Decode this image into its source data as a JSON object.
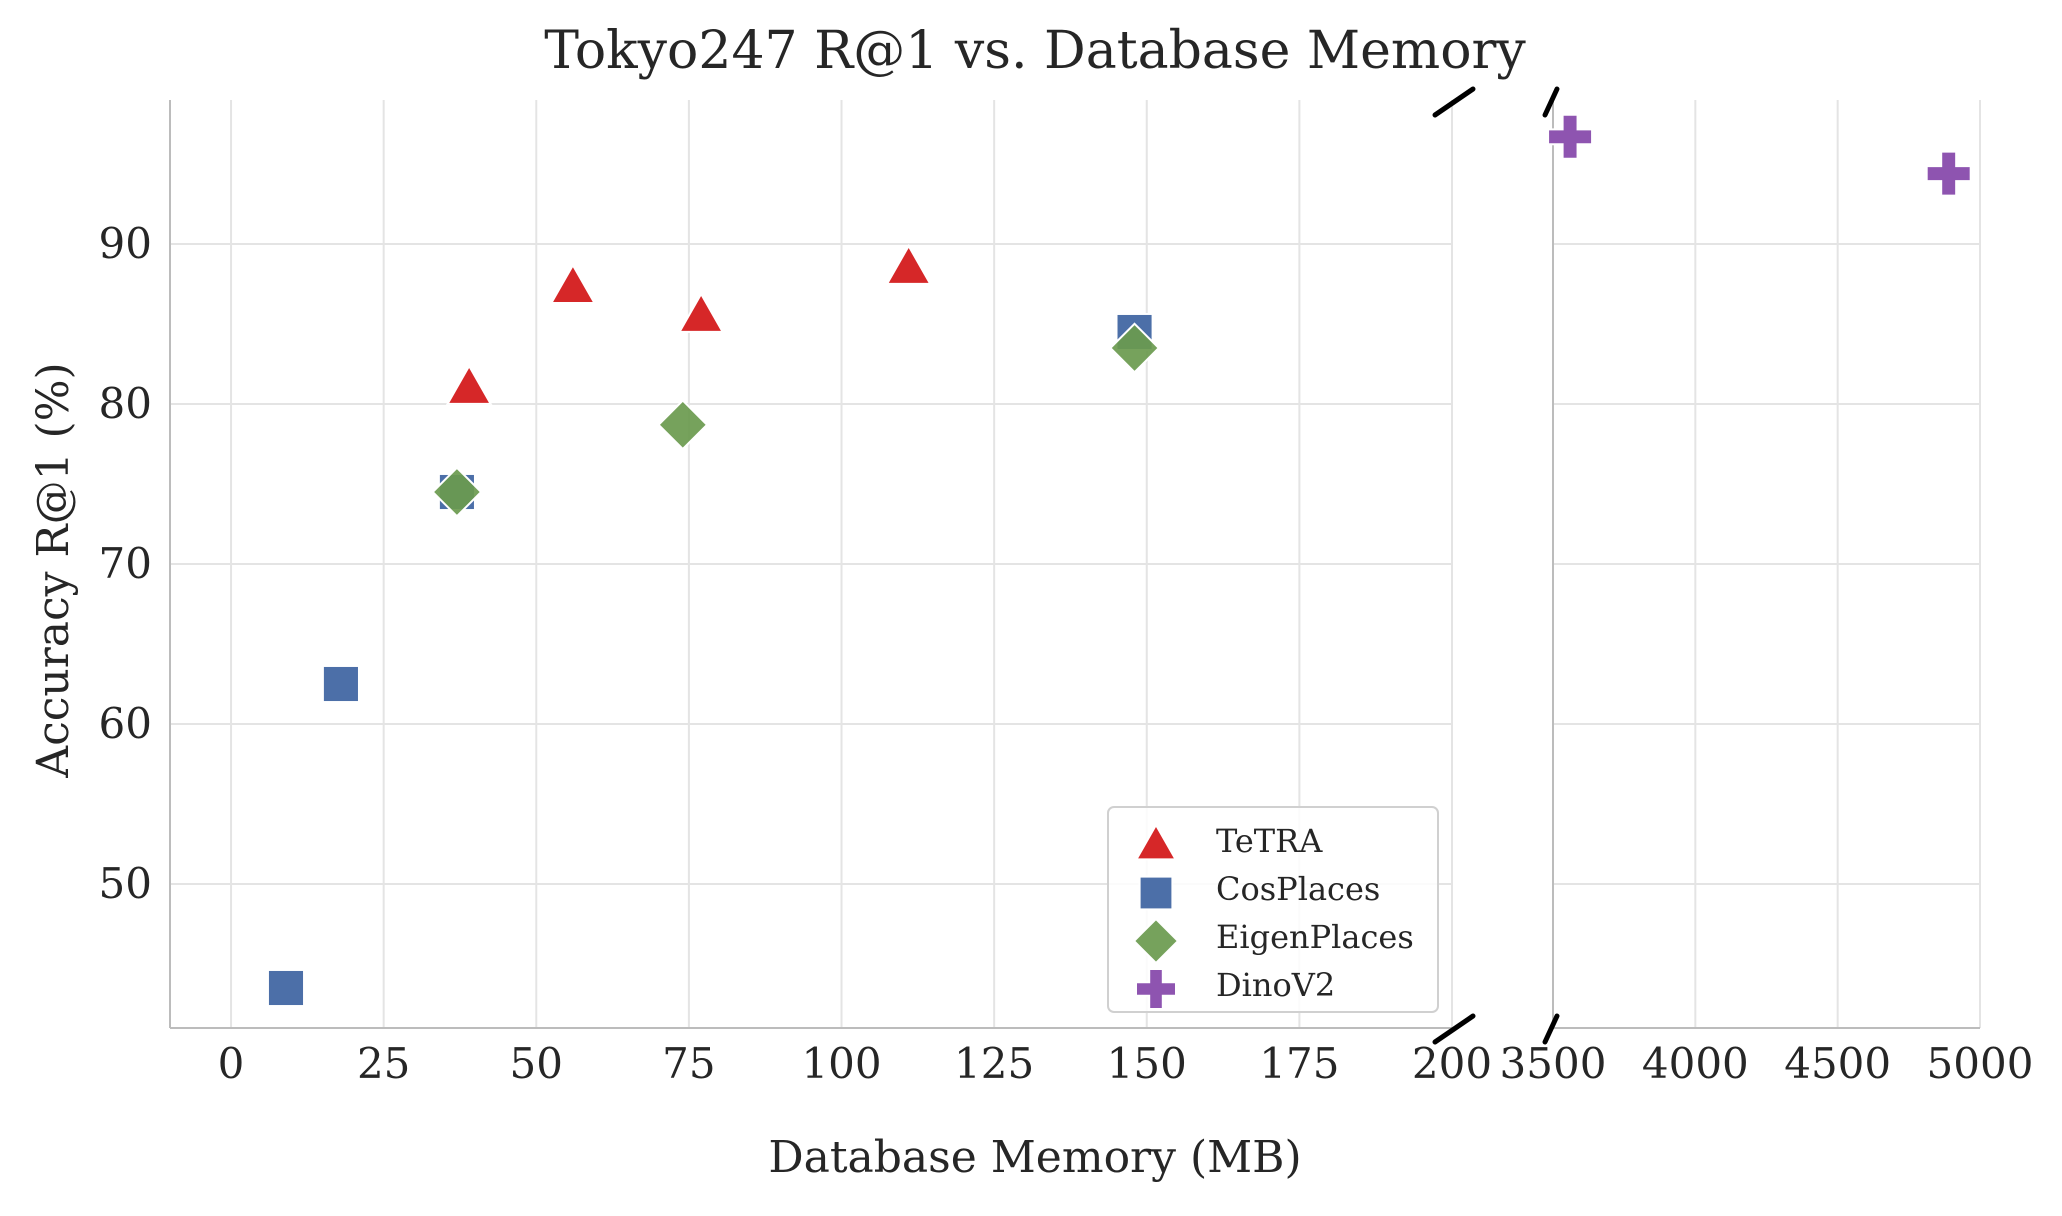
{
  "chart_data": {
    "type": "scatter",
    "title": "Tokyo247 R@1 vs. Database Memory",
    "xlabel": "Database Memory (MB)",
    "ylabel": "Accuracy R@1 (%)",
    "x_broken_axis": true,
    "segments": [
      {
        "xlim": [
          -10,
          200
        ],
        "ticks": [
          0,
          25,
          50,
          75,
          100,
          125,
          150,
          175,
          200
        ],
        "tick_labels": [
          "0",
          "25",
          "50",
          "75",
          "100",
          "125",
          "150",
          "175",
          "200"
        ]
      },
      {
        "xlim": [
          3500,
          5000
        ],
        "ticks": [
          3500,
          4000,
          4500,
          5000
        ],
        "tick_labels": [
          "3500",
          "4000",
          "4500",
          "5000"
        ]
      }
    ],
    "ylim": [
      41,
      99
    ],
    "yticks": [
      50,
      60,
      70,
      80,
      90
    ],
    "ytick_labels": [
      "50",
      "60",
      "70",
      "80",
      "90"
    ],
    "grid": true,
    "legend_position": "lower-right of left panel",
    "series": [
      {
        "name": "TeTRA",
        "marker": "triangle",
        "color": "#d62728",
        "points": [
          [
            39,
            81
          ],
          [
            56,
            87.3
          ],
          [
            77,
            85.5
          ],
          [
            111,
            88.5
          ]
        ]
      },
      {
        "name": "CosPlaces",
        "marker": "square",
        "color": "#4c6fa8",
        "points": [
          [
            9,
            43.5
          ],
          [
            18,
            62.5
          ],
          [
            37,
            74.5
          ],
          [
            148,
            84.5
          ]
        ]
      },
      {
        "name": "EigenPlaces",
        "marker": "diamond",
        "color": "#6a9a4e",
        "points": [
          [
            37,
            74.5
          ],
          [
            74,
            78.7
          ],
          [
            148,
            83.5
          ]
        ]
      },
      {
        "name": "DinoV2",
        "marker": "plus",
        "color": "#8e54b0",
        "points": [
          [
            3560,
            96.7
          ],
          [
            4890,
            94.4
          ]
        ]
      }
    ]
  }
}
